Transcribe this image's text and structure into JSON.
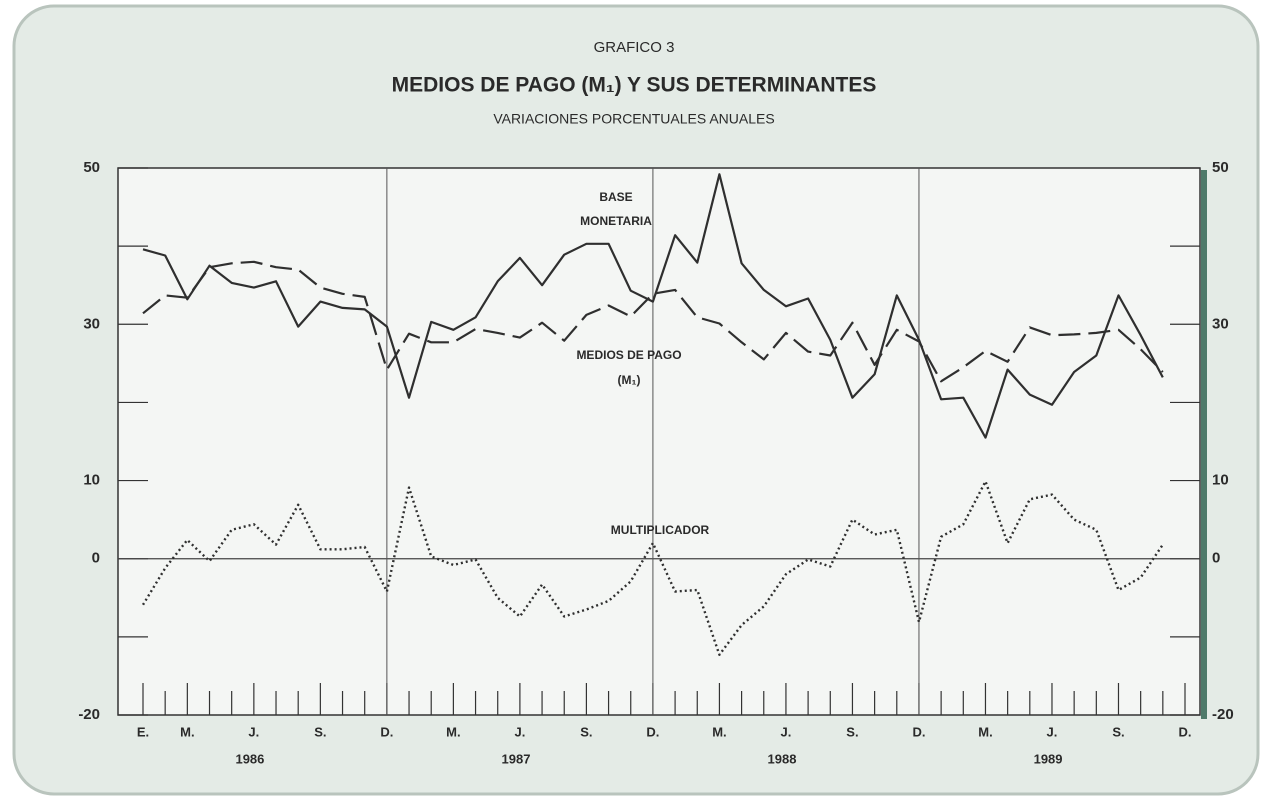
{
  "chart_data": {
    "type": "line",
    "supertitle": "GRAFICO 3",
    "title": "MEDIOS DE PAGO (M₁) Y SUS DETERMINANTES",
    "subtitle": "VARIACIONES PORCENTUALES ANUALES",
    "categories": [
      "E.",
      null,
      "M.",
      null,
      null,
      "J.",
      null,
      null,
      "S.",
      null,
      null,
      "D.",
      null,
      null,
      "M.",
      null,
      null,
      "J.",
      null,
      null,
      "S.",
      null,
      null,
      "D.",
      null,
      null,
      "M.",
      null,
      null,
      "J.",
      null,
      null,
      "S.",
      null,
      null,
      "D.",
      null,
      null,
      "M.",
      null,
      null,
      "J.",
      null,
      null,
      "S.",
      null,
      null,
      "D."
    ],
    "years": [
      "1986",
      "1987",
      "1988",
      "1989"
    ],
    "ylim": [
      -20,
      50
    ],
    "yticks": [
      -20,
      0,
      10,
      30,
      50
    ],
    "y_minor_ticks": [
      -10,
      20,
      40
    ],
    "series": [
      {
        "name": "BASE MONETARIA",
        "color": "#2f2f2f",
        "style": "solid",
        "values": [
          39.6,
          38.8,
          33.2,
          37.5,
          35.3,
          34.7,
          35.5,
          29.7,
          32.9,
          32.1,
          31.9,
          29.7,
          20.6,
          30.3,
          29.3,
          30.9,
          35.5,
          38.5,
          35.0,
          38.9,
          40.3,
          40.3,
          34.3,
          32.9,
          41.4,
          37.9,
          49.2,
          37.8,
          34.4,
          32.3,
          33.3,
          28.0,
          20.6,
          23.6,
          33.7,
          28.0,
          20.4,
          20.6,
          15.5,
          24.2,
          21.0,
          19.7,
          23.9,
          26.0,
          33.7,
          28.6,
          23.2,
          null
        ]
      },
      {
        "name": "MEDIOS DE PAGO (M₁)",
        "color": "#2f2f2f",
        "style": "dashed",
        "values": [
          31.4,
          33.7,
          33.4,
          37.3,
          37.8,
          38.0,
          37.3,
          37.0,
          34.7,
          33.9,
          33.5,
          24.2,
          28.8,
          27.7,
          27.7,
          29.4,
          28.9,
          28.3,
          30.2,
          27.9,
          31.2,
          32.4,
          31.0,
          33.9,
          34.4,
          30.9,
          30.1,
          27.7,
          25.5,
          28.9,
          26.5,
          26.0,
          30.2,
          24.8,
          29.3,
          27.8,
          22.7,
          24.5,
          26.6,
          25.2,
          29.6,
          28.6,
          28.7,
          28.9,
          29.3,
          26.8,
          23.9,
          null
        ]
      },
      {
        "name": "MULTIPLICADOR",
        "color": "#2f2f2f",
        "style": "dotted",
        "values": [
          -5.9,
          -1.2,
          2.4,
          -0.3,
          3.7,
          4.4,
          1.8,
          6.9,
          1.2,
          1.2,
          1.5,
          -4.2,
          9.1,
          0.3,
          -0.8,
          -0.1,
          -5.0,
          -7.4,
          -3.3,
          -7.4,
          -6.5,
          -5.4,
          -2.9,
          2.0,
          -4.2,
          -4.0,
          -12.3,
          -8.5,
          -6.1,
          -2.0,
          -0.1,
          -1.0,
          5.0,
          3.1,
          3.7,
          -8.1,
          2.8,
          4.4,
          9.9,
          2.0,
          7.6,
          8.2,
          5.0,
          3.7,
          -4.0,
          -2.4,
          1.8,
          null
        ]
      }
    ],
    "annotations": [
      "BASE",
      "MONETARIA",
      "MEDIOS DE PAGO",
      "(M₁)",
      "MULTIPLICADOR"
    ]
  }
}
